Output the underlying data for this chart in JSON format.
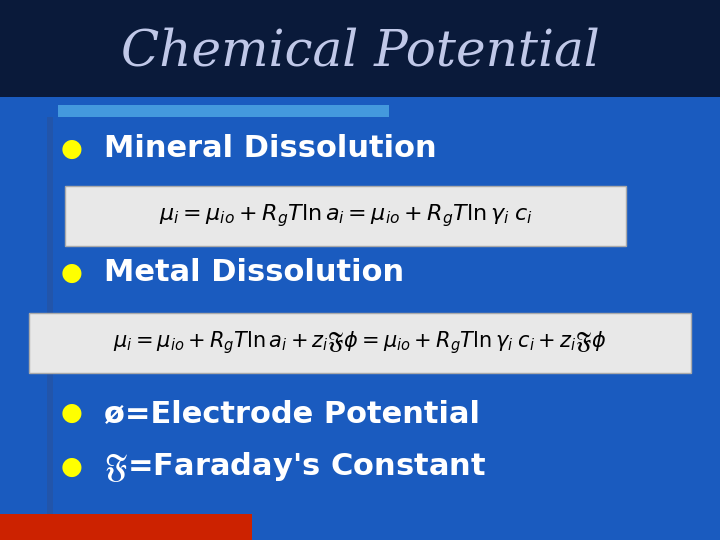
{
  "title": "Chemical Potential",
  "title_color": "#c0c8e8",
  "title_fontsize": 36,
  "bg_color": "#1a5bbf",
  "top_bar_color": "#0a1a3a",
  "accent_bar_color": "#4499dd",
  "bullet_color": "#ffff00",
  "bullet_text_color": "#ffffff",
  "eq_bg": "#e8e8e8",
  "eq_edge": "#aaaaaa",
  "eq_fontsize": 16,
  "bullet_fontsize": 22,
  "bottom_bar_color_left": "#cc2200",
  "left_bar_color": "#2255aa",
  "bullet1": "Mineral Dissolution",
  "bullet2": "Metal Dissolution",
  "bullet3": "ø=Electrode Potential",
  "bullet4": "ℑ=Faraday’s Constant"
}
